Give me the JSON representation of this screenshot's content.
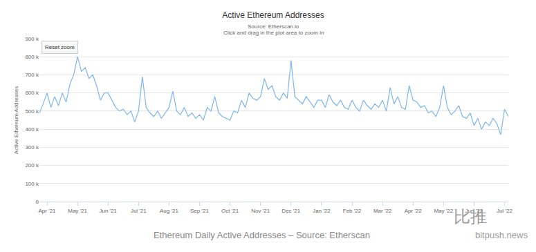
{
  "chart_data": {
    "type": "line",
    "title": "Active Ethereum Addresses",
    "subtitle": "Source: Etherscan.io",
    "y_label": "Active Ethereum Addresses",
    "annotations": [
      "Click and drag in the plot area to zoom in",
      "Reset zoom",
      "Ethereum Daily Active Addresses – Source: Etherscan",
      "比推",
      "bitpush.news"
    ],
    "categories": [
      null,
      null,
      "Apr '21",
      null,
      null,
      null,
      null,
      null,
      null,
      null,
      "May '21",
      null,
      null,
      null,
      null,
      null,
      null,
      null,
      "Jun '21",
      null,
      null,
      null,
      null,
      null,
      null,
      null,
      "Jul '21",
      null,
      null,
      null,
      null,
      null,
      null,
      null,
      "Aug '21",
      null,
      null,
      null,
      null,
      null,
      null,
      null,
      "Sep '21",
      null,
      null,
      null,
      null,
      null,
      null,
      null,
      "Oct '21",
      null,
      null,
      null,
      null,
      null,
      null,
      null,
      "Nov '21",
      null,
      null,
      null,
      null,
      null,
      null,
      null,
      "Dec '21",
      null,
      null,
      null,
      null,
      null,
      null,
      null,
      "Jan '22",
      null,
      null,
      null,
      null,
      null,
      null,
      null,
      "Feb '22",
      null,
      null,
      null,
      null,
      null,
      null,
      null,
      "Mar '22",
      null,
      null,
      null,
      null,
      null,
      null,
      null,
      "Apr '22",
      null,
      null,
      null,
      null,
      null,
      null,
      null,
      "May '22",
      null,
      null,
      null,
      null,
      null,
      null,
      null,
      "Jun '22",
      null,
      null,
      null,
      null,
      null,
      null,
      null,
      "Jul '22",
      null
    ],
    "values": [
      490000,
      540000,
      600000,
      520000,
      580000,
      530000,
      600000,
      550000,
      650000,
      700000,
      800000,
      720000,
      740000,
      680000,
      700000,
      640000,
      560000,
      600000,
      600000,
      560000,
      520000,
      500000,
      510000,
      480000,
      500000,
      440000,
      500000,
      690000,
      520000,
      490000,
      470000,
      500000,
      460000,
      490000,
      520000,
      610000,
      500000,
      480000,
      520000,
      470000,
      490000,
      460000,
      480000,
      450000,
      520000,
      500000,
      580000,
      490000,
      470000,
      460000,
      450000,
      500000,
      490000,
      560000,
      520000,
      600000,
      570000,
      560000,
      580000,
      680000,
      620000,
      640000,
      580000,
      560000,
      600000,
      570000,
      780000,
      580000,
      560000,
      540000,
      580000,
      550000,
      520000,
      560000,
      560000,
      520000,
      590000,
      550000,
      530000,
      560000,
      520000,
      510000,
      560000,
      520000,
      500000,
      560000,
      530000,
      510000,
      540000,
      520000,
      560000,
      500000,
      630000,
      540000,
      580000,
      520000,
      510000,
      640000,
      560000,
      550000,
      520000,
      530000,
      490000,
      500000,
      470000,
      520000,
      640000,
      520000,
      480000,
      500000,
      530000,
      470000,
      460000,
      490000,
      420000,
      460000,
      400000,
      440000,
      420000,
      460000,
      430000,
      370000,
      510000,
      470000
    ],
    "color": "#7cb5ec",
    "ylim": [
      0,
      900000
    ],
    "yticks": [
      0,
      {
        "value": 100000,
        "label": "100 k"
      },
      {
        "value": 200000,
        "label": "200 k"
      },
      {
        "value": 300000,
        "label": "300 k"
      },
      {
        "value": 400000,
        "label": "400 k"
      },
      {
        "value": 500000,
        "label": "500 k"
      },
      {
        "value": 600000,
        "label": "600 k"
      },
      {
        "value": 700000,
        "label": "700 k"
      },
      {
        "value": 800000,
        "label": "800 k"
      },
      {
        "value": 900000,
        "label": "900 k"
      }
    ],
    "grid": true
  }
}
